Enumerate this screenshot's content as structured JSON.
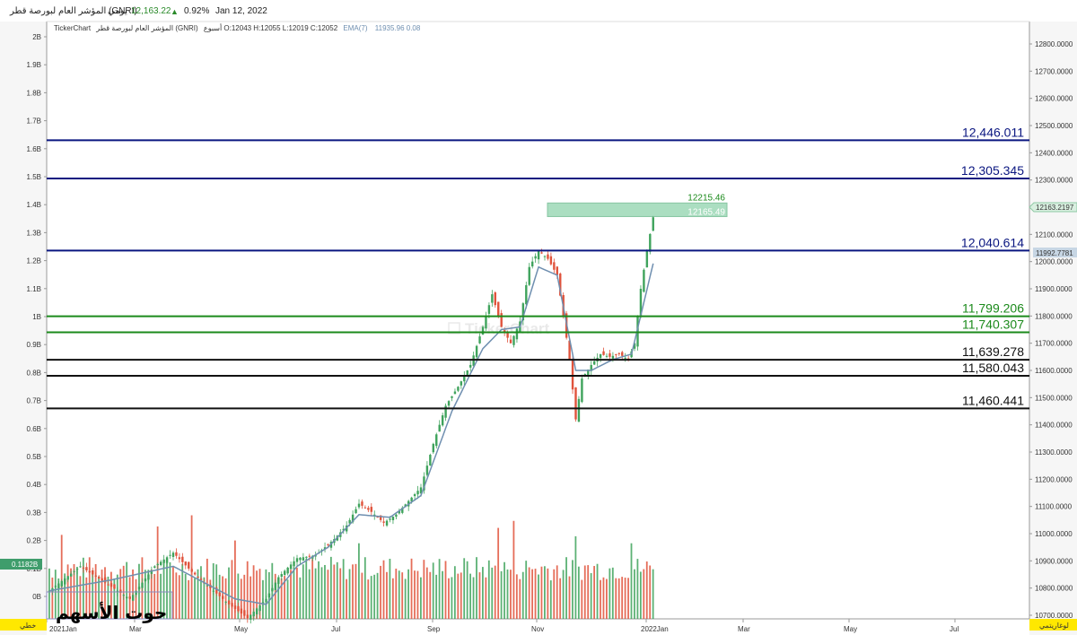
{
  "header": {
    "symbol_name": "المؤشر العام لبورصة قطر (GNRI)",
    "period": "يومي",
    "last_price": "12,163.22",
    "change_icon": "triangle-up-icon",
    "change_pct": "0.92%",
    "date": "Jan 12, 2022"
  },
  "info_line": {
    "brand": "TickerChart",
    "symbol": "المؤشر العام لبورصة قطر (GNRI)",
    "ohlc": "أسبوع O:12043 H:12055 L:12019 C:12052",
    "ema_label": "EMA(7)",
    "ema_values": "11935.96  0.08"
  },
  "watermark": "TickerChart",
  "signature": "حوت الأسهم",
  "left_scale_label": "خطي",
  "right_scale_label": "لوغاريتمي",
  "colors": {
    "up": "#3fa35c",
    "down": "#e0533c",
    "ema": "#6f8fb0",
    "blue_level": "#0a1680",
    "green_level": "#1b8a1b",
    "black_level": "#111111",
    "target_box": "#8fd3ad",
    "price_tag": "#d9efe0",
    "ema_tag": "#c7d6e4",
    "left_tag": "#3f9d6c",
    "scale_tag": "#ffe800"
  },
  "chart_data": {
    "type": "candlestick",
    "title": "",
    "x_axis": {
      "ticks": [
        "2021Jan",
        "Mar",
        "May",
        "Jul",
        "Sep",
        "Nov",
        "2022Jan",
        "Mar",
        "May",
        "Jul"
      ]
    },
    "price_axis": {
      "range": [
        10700,
        12850
      ],
      "ticks": [
        "12800.0000",
        "12700.0000",
        "12600.0000",
        "12500.0000",
        "12400.0000",
        "12300.0000",
        "12200.0000",
        "12100.0000",
        "12000.0000",
        "11900.0000",
        "11800.0000",
        "11700.0000",
        "11600.0000",
        "11500.0000",
        "11400.0000",
        "11300.0000",
        "11200.0000",
        "11100.0000",
        "11000.0000",
        "10900.0000",
        "10800.0000",
        "10700.0000"
      ],
      "last_price_tag": "12163.2197",
      "ema_tag": "11992.7781"
    },
    "volume_axis": {
      "range": [
        0,
        2000000000
      ],
      "ticks": [
        "2B",
        "1.9B",
        "1.8B",
        "1.7B",
        "1.6B",
        "1.5B",
        "1.4B",
        "1.3B",
        "1.2B",
        "1.1B",
        "1B",
        "0.9B",
        "0.8B",
        "0.7B",
        "0.6B",
        "0.5B",
        "0.4B",
        "0.3B",
        "0.2B",
        "0.1B",
        "0B"
      ],
      "last_volume_tag": "0.1182B"
    },
    "levels": [
      {
        "value": 12446.011,
        "label": "12,446.011",
        "kind": "blue"
      },
      {
        "value": 12305.345,
        "label": "12,305.345",
        "kind": "blue"
      },
      {
        "value": 12040.614,
        "label": "12,040.614",
        "kind": "blue"
      },
      {
        "value": 11799.206,
        "label": "11,799.206",
        "kind": "green"
      },
      {
        "value": 11740.307,
        "label": "11,740.307",
        "kind": "green"
      },
      {
        "value": 11639.278,
        "label": "11,639.278",
        "kind": "black"
      },
      {
        "value": 11580.043,
        "label": "11,580.043",
        "kind": "black"
      },
      {
        "value": 11460.441,
        "label": "11,460.441",
        "kind": "black"
      }
    ],
    "target_box": {
      "from": 12165.49,
      "to": 12215.46,
      "labels": [
        "12215.46",
        "12165.49"
      ]
    },
    "price_path": [
      {
        "i": 0,
        "p": 10790
      },
      {
        "i": 10,
        "p": 10880
      },
      {
        "i": 18,
        "p": 10820
      },
      {
        "i": 26,
        "p": 10760
      },
      {
        "i": 34,
        "p": 10880
      },
      {
        "i": 40,
        "p": 10930
      },
      {
        "i": 46,
        "p": 10860
      },
      {
        "i": 52,
        "p": 10800
      },
      {
        "i": 58,
        "p": 10740
      },
      {
        "i": 64,
        "p": 10690
      },
      {
        "i": 70,
        "p": 10760
      },
      {
        "i": 74,
        "p": 10840
      },
      {
        "i": 80,
        "p": 10910
      },
      {
        "i": 86,
        "p": 10920
      },
      {
        "i": 92,
        "p": 10980
      },
      {
        "i": 96,
        "p": 11030
      },
      {
        "i": 100,
        "p": 11110
      },
      {
        "i": 104,
        "p": 11080
      },
      {
        "i": 108,
        "p": 11040
      },
      {
        "i": 112,
        "p": 11070
      },
      {
        "i": 116,
        "p": 11120
      },
      {
        "i": 120,
        "p": 11170
      },
      {
        "i": 124,
        "p": 11330
      },
      {
        "i": 128,
        "p": 11470
      },
      {
        "i": 132,
        "p": 11540
      },
      {
        "i": 136,
        "p": 11620
      },
      {
        "i": 140,
        "p": 11760
      },
      {
        "i": 143,
        "p": 11880
      },
      {
        "i": 146,
        "p": 11760
      },
      {
        "i": 149,
        "p": 11700
      },
      {
        "i": 152,
        "p": 11780
      },
      {
        "i": 155,
        "p": 11980
      },
      {
        "i": 158,
        "p": 12040
      },
      {
        "i": 161,
        "p": 12010
      },
      {
        "i": 164,
        "p": 11950
      },
      {
        "i": 166,
        "p": 11800
      },
      {
        "i": 168,
        "p": 11640
      },
      {
        "i": 170,
        "p": 11420
      },
      {
        "i": 172,
        "p": 11570
      },
      {
        "i": 175,
        "p": 11620
      },
      {
        "i": 178,
        "p": 11660
      },
      {
        "i": 181,
        "p": 11650
      },
      {
        "i": 184,
        "p": 11660
      },
      {
        "i": 187,
        "p": 11640
      },
      {
        "i": 189,
        "p": 11700
      },
      {
        "i": 191,
        "p": 11900
      },
      {
        "i": 193,
        "p": 12040
      },
      {
        "i": 195,
        "p": 12163
      }
    ],
    "ema_path": [
      {
        "i": 0,
        "p": 10790
      },
      {
        "i": 20,
        "p": 10830
      },
      {
        "i": 40,
        "p": 10880
      },
      {
        "i": 60,
        "p": 10760
      },
      {
        "i": 70,
        "p": 10740
      },
      {
        "i": 80,
        "p": 10880
      },
      {
        "i": 90,
        "p": 10950
      },
      {
        "i": 100,
        "p": 11070
      },
      {
        "i": 110,
        "p": 11060
      },
      {
        "i": 120,
        "p": 11140
      },
      {
        "i": 130,
        "p": 11450
      },
      {
        "i": 140,
        "p": 11680
      },
      {
        "i": 146,
        "p": 11750
      },
      {
        "i": 152,
        "p": 11760
      },
      {
        "i": 158,
        "p": 11980
      },
      {
        "i": 164,
        "p": 11950
      },
      {
        "i": 170,
        "p": 11600
      },
      {
        "i": 175,
        "p": 11600
      },
      {
        "i": 182,
        "p": 11640
      },
      {
        "i": 188,
        "p": 11660
      },
      {
        "i": 192,
        "p": 11850
      },
      {
        "i": 195,
        "p": 11993
      }
    ],
    "n_bars": 196,
    "volume_level": 115000000,
    "volume_spikes": [
      {
        "i": 4,
        "v": 220000000
      },
      {
        "i": 35,
        "v": 250000000
      },
      {
        "i": 46,
        "v": 290000000
      },
      {
        "i": 60,
        "v": 200000000
      },
      {
        "i": 100,
        "v": 190000000
      },
      {
        "i": 145,
        "v": 245000000
      },
      {
        "i": 150,
        "v": 270000000
      },
      {
        "i": 170,
        "v": 215000000
      },
      {
        "i": 188,
        "v": 190000000
      }
    ]
  }
}
